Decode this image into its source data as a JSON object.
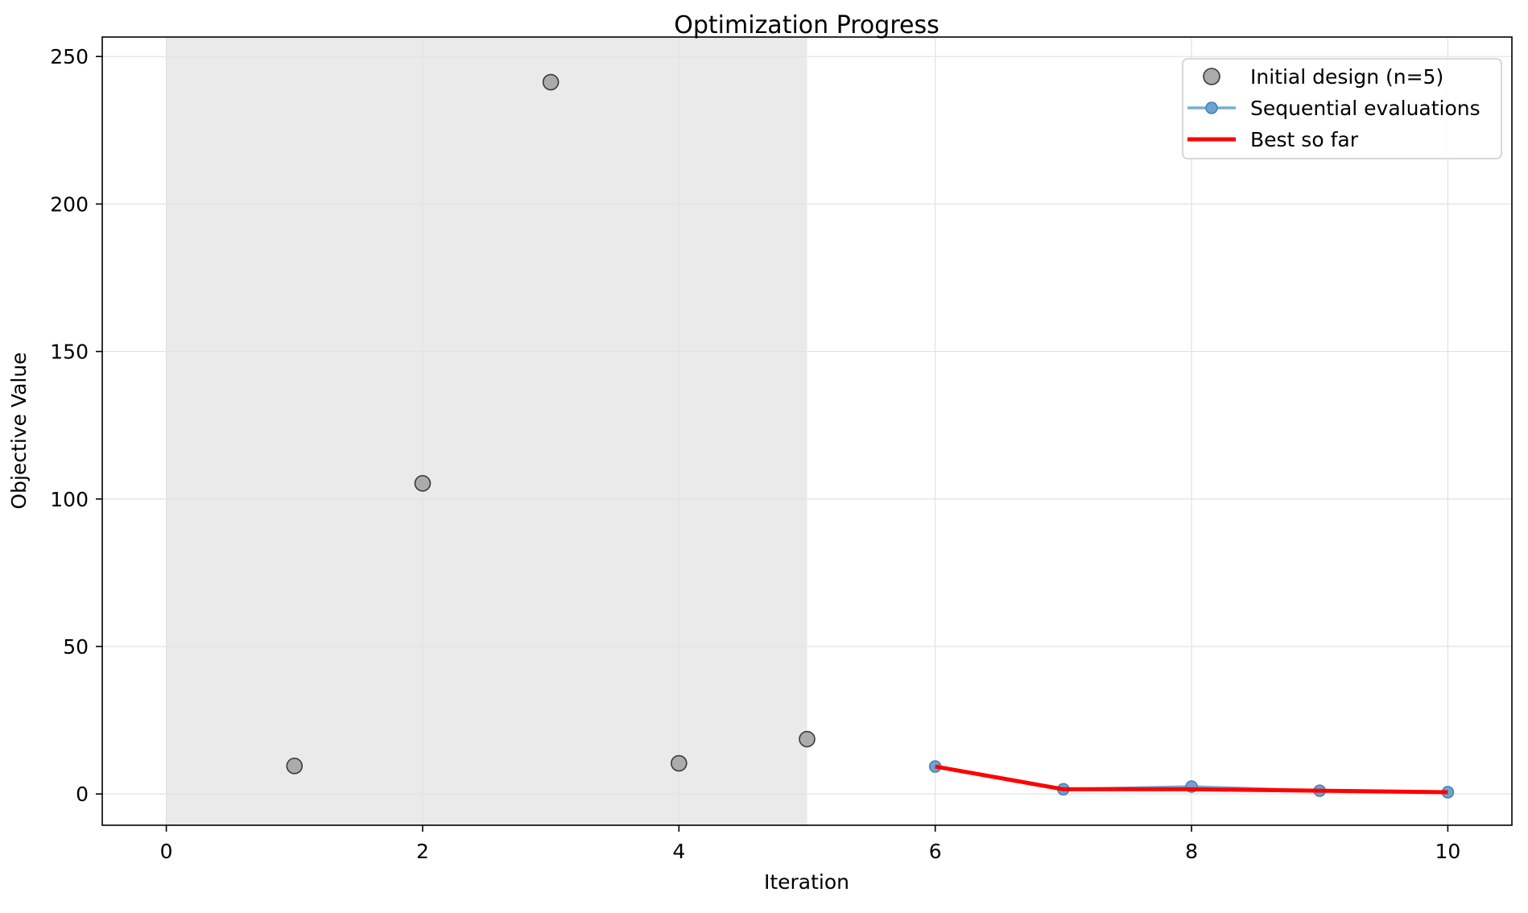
{
  "figure": {
    "background": "#ffffff"
  },
  "chart_data": {
    "type": "scatter",
    "title": "Optimization Progress",
    "xlabel": "Iteration",
    "ylabel": "Objective Value",
    "xlim": [
      -0.5,
      10.5
    ],
    "ylim": [
      -10.6,
      256.6
    ],
    "xticks": [
      0,
      2,
      4,
      6,
      8,
      10
    ],
    "yticks": [
      0,
      50,
      100,
      150,
      200,
      250
    ],
    "grid": true,
    "grid_color": "#e2e2e2",
    "spine_color": "#000000",
    "legend_position": "upper right",
    "shaded_region": {
      "x_start": 0,
      "x_end": 5,
      "color": "#eaeaea"
    },
    "series": [
      {
        "name": "Initial design (n=5)",
        "type": "scatter",
        "marker_fill": "#ababab",
        "marker_edge": "#3a3a3a",
        "marker_radius": 9.5,
        "x": [
          1,
          2,
          3,
          4,
          5
        ],
        "y": [
          9.5,
          105.3,
          241.3,
          10.4,
          18.6
        ]
      },
      {
        "name": "Sequential evaluations",
        "type": "line-marker",
        "line_color": "#79add2",
        "line_width": 3.5,
        "marker_fill": "#6fa3cf",
        "marker_edge": "#4682b4",
        "marker_radius": 7,
        "x": [
          6,
          7,
          8,
          9,
          10
        ],
        "y": [
          9.3,
          1.6,
          2.5,
          1.1,
          0.6
        ]
      },
      {
        "name": "Best so far",
        "type": "line",
        "line_color": "#ff0000",
        "line_width": 5,
        "x": [
          6,
          7,
          8,
          9,
          10
        ],
        "y": [
          9.3,
          1.6,
          1.6,
          1.1,
          0.6
        ]
      }
    ],
    "legend": [
      {
        "label": "Initial design (n=5)",
        "swatch": "circle",
        "color": "#ababab",
        "edge": "#3a3a3a"
      },
      {
        "label": "Sequential evaluations",
        "swatch": "line-marker",
        "color": "#79add2",
        "marker_fill": "#6fa3cf",
        "marker_edge": "#4682b4"
      },
      {
        "label": "Best so far",
        "swatch": "line",
        "color": "#ff0000"
      }
    ]
  }
}
